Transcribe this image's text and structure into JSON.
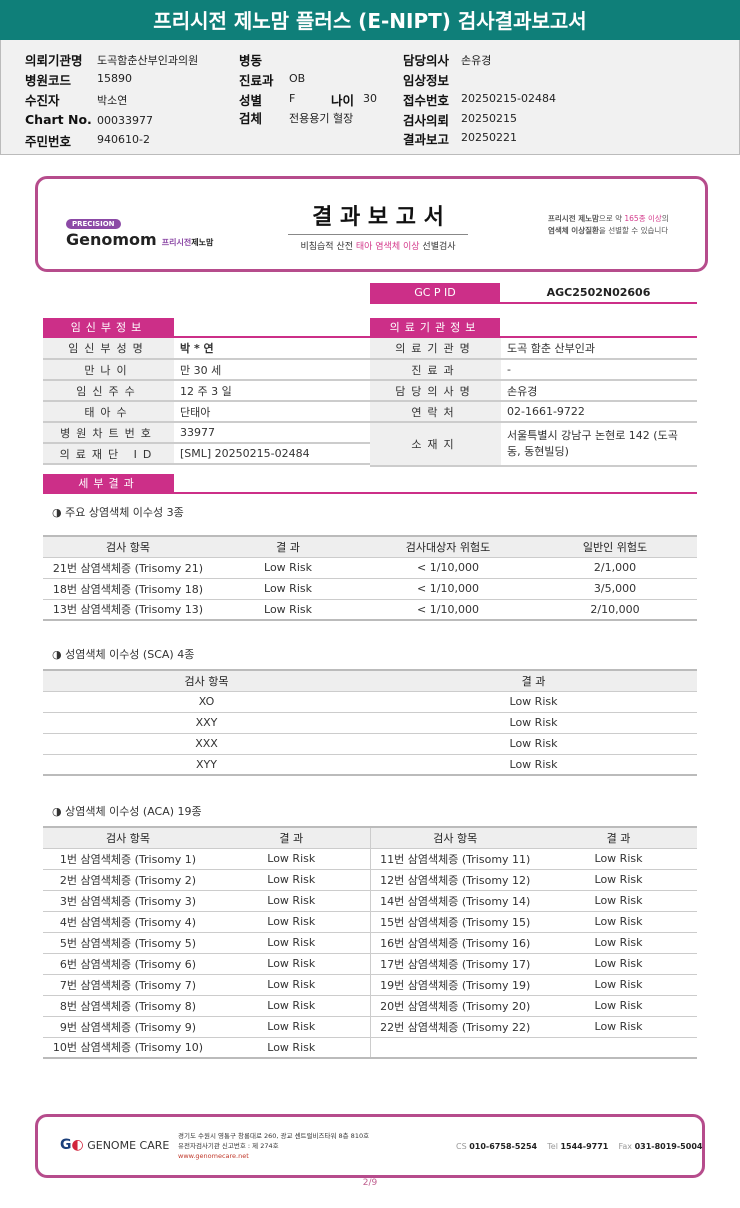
{
  "title": "프리시전 제노맘 플러스 (E-NIPT) 검사결과보고서",
  "info": {
    "fields": [
      {
        "label": "의뢰기관명",
        "value": "도곡함춘산부인과의원"
      },
      {
        "label": "병원코드",
        "value": "15890"
      },
      {
        "label": "수진자",
        "value": "박소연"
      },
      {
        "label": "Chart No.",
        "value": "00033977"
      },
      {
        "label": "주민번호",
        "value": "940610-2"
      },
      {
        "label": "병동",
        "value": ""
      },
      {
        "label": "진료과",
        "value": "OB"
      },
      {
        "label": "성별",
        "value": "F"
      },
      {
        "label": "나이",
        "value": "30"
      },
      {
        "label": "검체",
        "value": "전용용기 혈장"
      },
      {
        "label": "담당의사",
        "value": "손유경"
      },
      {
        "label": "임상정보",
        "value": ""
      },
      {
        "label": "접수번호",
        "value": "20250215-02484"
      },
      {
        "label": "검사의뢰",
        "value": "20250215"
      },
      {
        "label": "결과보고",
        "value": "20250221"
      }
    ]
  },
  "card": {
    "badge": "PRECISION",
    "brand": "Genomom",
    "brand_sub1": "프리시전",
    "brand_sub2": "제노맘",
    "title": "결 과 보 고 서",
    "subtitle_a": "비침습적 산전 ",
    "subtitle_b": "태아 염색체 이상",
    "subtitle_c": " 선별검사",
    "right_a": "프리시전 제노맘",
    "right_b": "으로 약 ",
    "right_c": "165종 이상",
    "right_d": "의",
    "right_e": "염색체 이상질환",
    "right_f": "을 선별할 수 있습니다"
  },
  "gcp": {
    "label": "GC P ID",
    "value": "AGC2502N02606"
  },
  "patient": {
    "header": "임신부정보",
    "rows": [
      {
        "k": "임신부성명",
        "v": "박 * 연"
      },
      {
        "k": "만나이",
        "v": "만 30 세"
      },
      {
        "k": "임신주수",
        "v": "12 주 3 일"
      },
      {
        "k": "태아수",
        "v": "단태아"
      },
      {
        "k": "병원차트번호",
        "v": "33977"
      },
      {
        "k": "의료재단 ID",
        "v": "[SML] 20250215-02484"
      }
    ]
  },
  "clinic": {
    "header": "의료기관정보",
    "rows": [
      {
        "k": "의료기관명",
        "v": "도곡 함춘 산부인과"
      },
      {
        "k": "진료과",
        "v": "-"
      },
      {
        "k": "담당의사명",
        "v": "손유경"
      },
      {
        "k": "연락처",
        "v": "02-1661-9722"
      },
      {
        "k": "소재지",
        "v": "서울특별시 강남구 논현로 142 (도곡동, 동현빌딩)"
      }
    ]
  },
  "detail_header": "세부결과",
  "major": {
    "title": "◑ 주요 상염색체 이수성 3종",
    "headers": [
      "검사 항목",
      "결 과",
      "검사대상자 위험도",
      "일반인 위험도"
    ],
    "rows": [
      [
        "21번 삼염색체증 (Trisomy 21)",
        "Low Risk",
        "< 1/10,000",
        "2/1,000"
      ],
      [
        "18번 삼염색체증 (Trisomy 18)",
        "Low Risk",
        "< 1/10,000",
        "3/5,000"
      ],
      [
        "13번 삼염색체증 (Trisomy 13)",
        "Low Risk",
        "< 1/10,000",
        "2/10,000"
      ]
    ]
  },
  "sca": {
    "title": "◑ 성염색체 이수성 (SCA) 4종",
    "headers": [
      "검사 항목",
      "결 과"
    ],
    "rows": [
      [
        "XO",
        "Low Risk"
      ],
      [
        "XXY",
        "Low Risk"
      ],
      [
        "XXX",
        "Low Risk"
      ],
      [
        "XYY",
        "Low Risk"
      ]
    ]
  },
  "aca": {
    "title": "◑ 상염색체 이수성 (ACA) 19종",
    "headers": [
      "검사 항목",
      "결 과",
      "검사 항목",
      "결 과"
    ],
    "rows": [
      [
        "1번 삼염색체증 (Trisomy 1)",
        "Low Risk",
        "11번 삼염색체증 (Trisomy 11)",
        "Low Risk"
      ],
      [
        "2번 삼염색체증 (Trisomy 2)",
        "Low Risk",
        "12번 삼염색체증 (Trisomy 12)",
        "Low Risk"
      ],
      [
        "3번 삼염색체증 (Trisomy 3)",
        "Low Risk",
        "14번 삼염색체증 (Trisomy 14)",
        "Low Risk"
      ],
      [
        "4번 삼염색체증 (Trisomy 4)",
        "Low Risk",
        "15번 삼염색체증 (Trisomy 15)",
        "Low Risk"
      ],
      [
        "5번 삼염색체증 (Trisomy 5)",
        "Low Risk",
        "16번 삼염색체증 (Trisomy 16)",
        "Low Risk"
      ],
      [
        "6번 삼염색체증 (Trisomy 6)",
        "Low Risk",
        "17번 삼염색체증 (Trisomy 17)",
        "Low Risk"
      ],
      [
        "7번 삼염색체증 (Trisomy 7)",
        "Low Risk",
        "19번 삼염색체증 (Trisomy 19)",
        "Low Risk"
      ],
      [
        "8번 삼염색체증 (Trisomy 8)",
        "Low Risk",
        "20번 삼염색체증 (Trisomy 20)",
        "Low Risk"
      ],
      [
        "9번 삼염색체증 (Trisomy 9)",
        "Low Risk",
        "22번 삼염색체증 (Trisomy 22)",
        "Low Risk"
      ],
      [
        "10번 삼염색체증 (Trisomy 10)",
        "Low Risk",
        "",
        ""
      ]
    ]
  },
  "footer": {
    "brand": "GENOME CARE",
    "addr1": "경기도 수원시 영통구 창룡대로 260, 광교 센트럴비즈타워 8층 810호",
    "addr2": "유전자검사기관 신고번호 : 제 274호",
    "web": "www.genomecare.net",
    "cs_label": "CS",
    "cs": "010-6758-5254",
    "tel_label": "Tel",
    "tel": "1544-9771",
    "fax_label": "Fax",
    "fax": "031-8019-5004"
  },
  "page": "2/9",
  "colors": {
    "teal": "#0f7f79",
    "pink": "#cc2f88",
    "border": "#b64c8c"
  }
}
